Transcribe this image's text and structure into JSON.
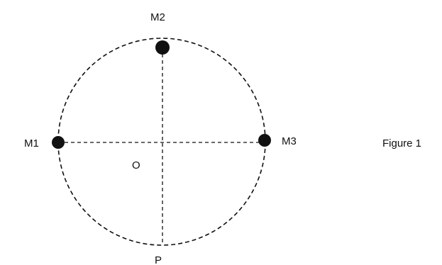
{
  "diagram": {
    "points": {
      "m1": "M1",
      "m2": "M2",
      "m3": "M3",
      "center": "O",
      "bottom": "P"
    },
    "caption": "Figure 1",
    "colors": {
      "ink": "#111111",
      "background": "#ffffff"
    }
  }
}
